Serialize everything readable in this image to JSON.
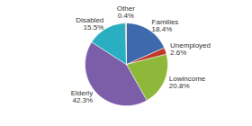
{
  "chart_data": {
    "type": "pie",
    "categories": [
      "Families",
      "Unemployed",
      "Lowincome",
      "Elderly",
      "Disabled",
      "Other"
    ],
    "values": [
      18.4,
      2.6,
      20.8,
      42.3,
      15.5,
      0.4
    ],
    "value_labels": [
      "18.4%",
      "2.6%",
      "20.8%",
      "42.3%",
      "15.5%",
      "0.4%"
    ],
    "colors": [
      "#3e6aad",
      "#c0392b",
      "#8db83a",
      "#7b5ea7",
      "#2aafc2",
      "#c8a84b"
    ],
    "data_labels": true
  }
}
